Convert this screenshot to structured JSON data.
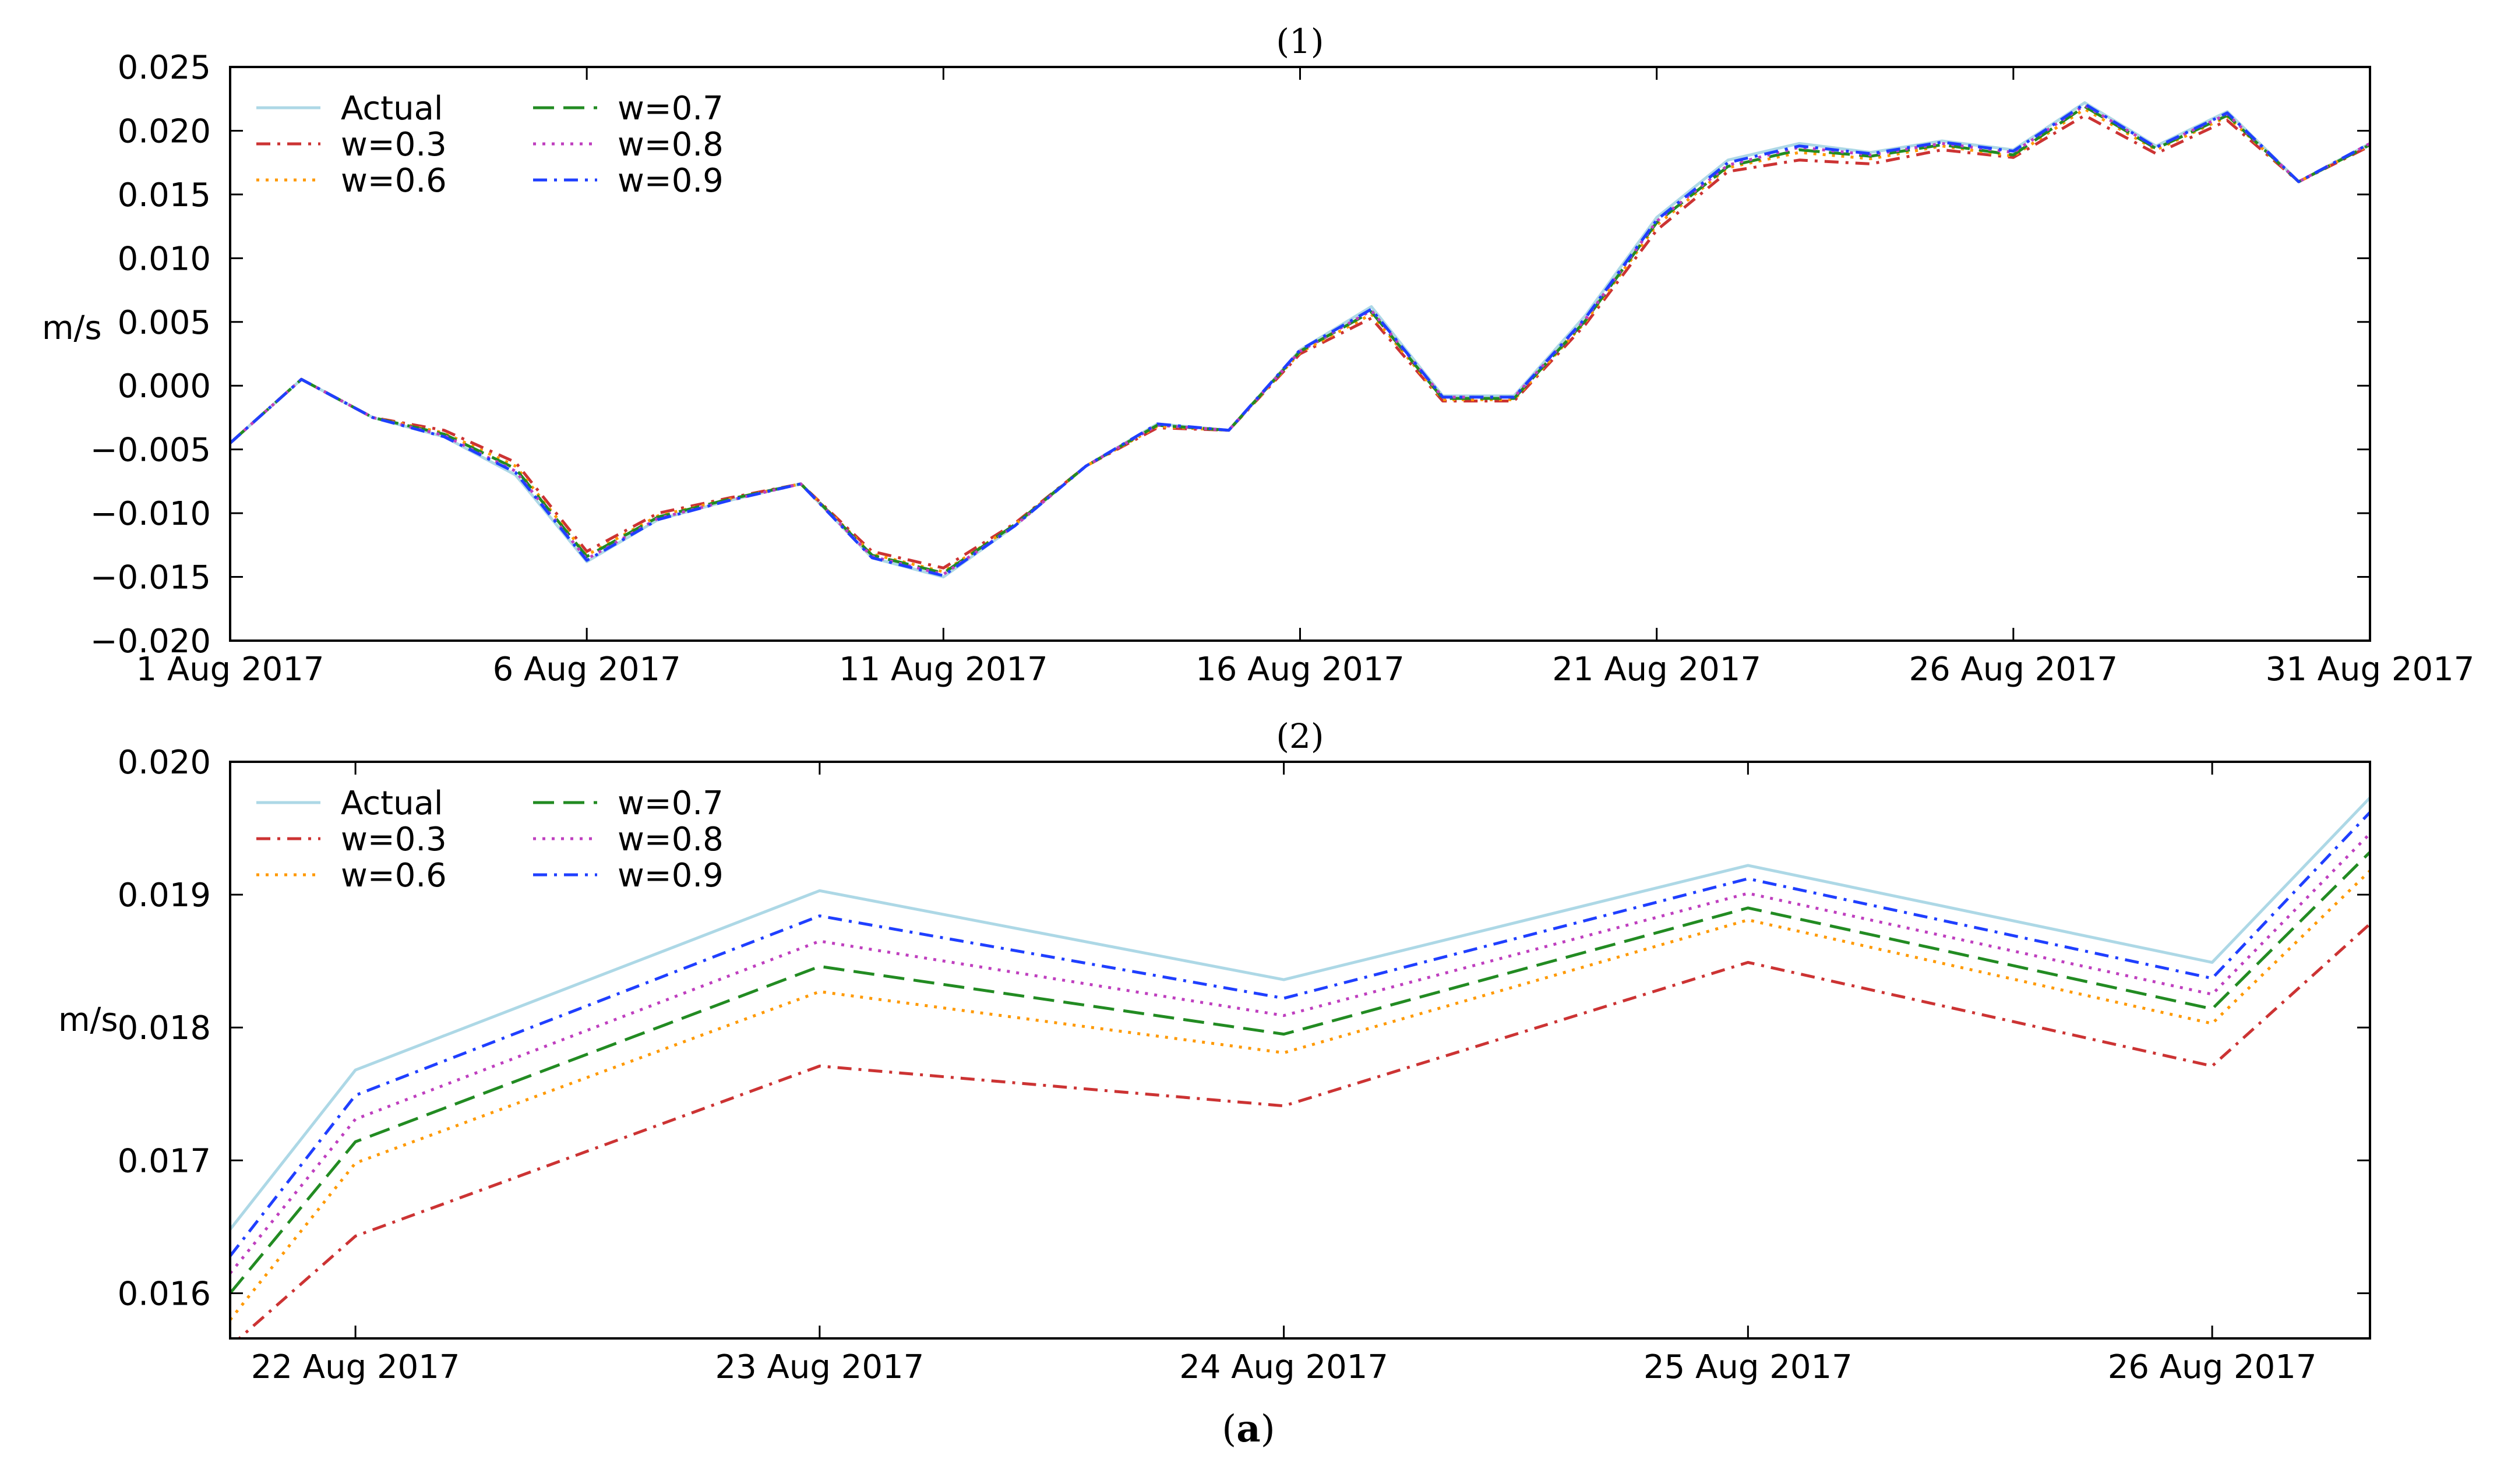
{
  "figure_caption": {
    "open": "(",
    "letter": "a",
    "close": ")"
  },
  "chart_data": [
    {
      "type": "line",
      "title": "(1)",
      "ylabel": "m/s",
      "xlabel": "",
      "legend_location": "top-left",
      "ylim": [
        -0.02,
        0.025
      ],
      "yticks": [
        "0.025",
        "0.020",
        "0.015",
        "0.010",
        "0.005",
        "0.000",
        "−0.005",
        "−0.010",
        "−0.015",
        "−0.020"
      ],
      "ytick_values": [
        0.025,
        0.02,
        0.015,
        0.01,
        0.005,
        0.0,
        -0.005,
        -0.01,
        -0.015,
        -0.02
      ],
      "xlim": [
        1,
        31
      ],
      "x": [
        1,
        2,
        3,
        4,
        5,
        6,
        7,
        8,
        9,
        10,
        11,
        12,
        13,
        14,
        15,
        16,
        17,
        18,
        19,
        20,
        21,
        22,
        23,
        24,
        25,
        26,
        27,
        28,
        29,
        30,
        31
      ],
      "xticks": [
        "1 Aug 2017",
        "6 Aug 2017",
        "11 Aug 2017",
        "16 Aug 2017",
        "21 Aug 2017",
        "26 Aug 2017",
        "31 Aug 2017"
      ],
      "xtick_values": [
        1,
        6,
        11,
        16,
        21,
        26,
        31
      ],
      "series": [
        {
          "name": "Actual",
          "color": "#add8e6",
          "dash": "solid",
          "values": [
            -0.0045,
            0.0005,
            -0.0025,
            -0.004,
            -0.007,
            -0.0138,
            -0.0105,
            -0.009,
            -0.0077,
            -0.0135,
            -0.015,
            -0.011,
            -0.0063,
            -0.003,
            -0.0035,
            0.0028,
            0.0062,
            -0.0008,
            -0.0008,
            0.0055,
            0.0132,
            0.0177,
            0.019,
            0.0183,
            0.0192,
            0.0185,
            0.0222,
            0.0188,
            0.0215,
            0.016,
            0.019
          ]
        },
        {
          "name": "w=0.3",
          "color": "#cc3333",
          "dash": "dashdot",
          "values": [
            -0.0045,
            0.0005,
            -0.0025,
            -0.0035,
            -0.006,
            -0.013,
            -0.01,
            -0.0088,
            -0.0077,
            -0.013,
            -0.0143,
            -0.0108,
            -0.0063,
            -0.0033,
            -0.0035,
            0.0025,
            0.0053,
            -0.0012,
            -0.0012,
            0.0048,
            0.0122,
            0.0168,
            0.0177,
            0.0174,
            0.0185,
            0.0179,
            0.0212,
            0.0182,
            0.0208,
            0.016,
            0.0188
          ]
        },
        {
          "name": "w=0.6",
          "color": "#ff9900",
          "dash": "dotted",
          "values": [
            -0.0045,
            0.0005,
            -0.0025,
            -0.0037,
            -0.0063,
            -0.0133,
            -0.0102,
            -0.0089,
            -0.0077,
            -0.0132,
            -0.0146,
            -0.0109,
            -0.0063,
            -0.0032,
            -0.0035,
            0.0026,
            0.0056,
            -0.0011,
            -0.0011,
            0.005,
            0.0126,
            0.0171,
            0.0183,
            0.0178,
            0.0188,
            0.018,
            0.0217,
            0.0185,
            0.0211,
            0.016,
            0.0189
          ]
        },
        {
          "name": "w=0.7",
          "color": "#228b22",
          "dash": "dashed",
          "values": [
            -0.0045,
            0.0005,
            -0.0025,
            -0.0038,
            -0.0065,
            -0.0134,
            -0.0103,
            -0.0089,
            -0.0077,
            -0.0133,
            -0.0147,
            -0.0109,
            -0.0063,
            -0.0031,
            -0.0035,
            0.0027,
            0.0058,
            -0.001,
            -0.001,
            0.0051,
            0.0128,
            0.0172,
            0.0185,
            0.018,
            0.0189,
            0.0181,
            0.0219,
            0.0186,
            0.0212,
            0.016,
            0.0189
          ]
        },
        {
          "name": "w=0.8",
          "color": "#bf3fbf",
          "dash": "dotted",
          "values": [
            -0.0045,
            0.0005,
            -0.0025,
            -0.0039,
            -0.0067,
            -0.0136,
            -0.0104,
            -0.009,
            -0.0077,
            -0.0134,
            -0.0148,
            -0.011,
            -0.0063,
            -0.0031,
            -0.0035,
            0.0027,
            0.0059,
            -0.0009,
            -0.0009,
            0.0052,
            0.0129,
            0.0173,
            0.0187,
            0.0181,
            0.019,
            0.0183,
            0.022,
            0.0187,
            0.0213,
            0.016,
            0.019
          ]
        },
        {
          "name": "w=0.9",
          "color": "#1f3fff",
          "dash": "dashdot",
          "values": [
            -0.0045,
            0.0005,
            -0.0025,
            -0.004,
            -0.0068,
            -0.0137,
            -0.0105,
            -0.009,
            -0.0077,
            -0.0135,
            -0.0149,
            -0.011,
            -0.0063,
            -0.003,
            -0.0035,
            0.0028,
            0.006,
            -0.0009,
            -0.0009,
            0.0053,
            0.013,
            0.0175,
            0.0188,
            0.0182,
            0.0191,
            0.0184,
            0.0221,
            0.0187,
            0.0214,
            0.016,
            0.019
          ]
        }
      ]
    },
    {
      "type": "line",
      "title": "(2)",
      "ylabel": "m/s",
      "xlabel": "",
      "legend_location": "top-left",
      "ylim": [
        0.01566,
        0.02
      ],
      "yticks": [
        "0.020",
        "0.019",
        "0.018",
        "0.017",
        "0.016"
      ],
      "ytick_values": [
        0.02,
        0.019,
        0.018,
        0.017,
        0.016
      ],
      "xlim": [
        21.73,
        26.34
      ],
      "x": [
        21.73,
        22,
        23,
        24,
        25,
        26,
        26.34
      ],
      "xticks": [
        "22 Aug 2017",
        "23 Aug 2017",
        "24 Aug 2017",
        "25 Aug 2017",
        "26 Aug 2017"
      ],
      "xtick_values": [
        22,
        23,
        24,
        25,
        26
      ],
      "series": [
        {
          "name": "Actual",
          "color": "#add8e6",
          "dash": "solid",
          "values": [
            0.01648,
            0.01768,
            0.01903,
            0.01836,
            0.01922,
            0.01849,
            0.01973
          ]
        },
        {
          "name": "w=0.3",
          "color": "#cc3333",
          "dash": "dashdot",
          "values": [
            0.0156,
            0.01643,
            0.01771,
            0.01741,
            0.01849,
            0.01771,
            0.01878
          ]
        },
        {
          "name": "w=0.6",
          "color": "#ff9900",
          "dash": "dotted",
          "values": [
            0.0158,
            0.01698,
            0.01827,
            0.01781,
            0.01881,
            0.01803,
            0.01918
          ]
        },
        {
          "name": "w=0.7",
          "color": "#228b22",
          "dash": "dashed",
          "values": [
            0.016,
            0.01714,
            0.01846,
            0.01795,
            0.0189,
            0.01814,
            0.01932
          ]
        },
        {
          "name": "w=0.8",
          "color": "#bf3fbf",
          "dash": "dotted",
          "values": [
            0.01615,
            0.01731,
            0.01865,
            0.01809,
            0.01901,
            0.01825,
            0.01946
          ]
        },
        {
          "name": "w=0.9",
          "color": "#1f3fff",
          "dash": "dashdot",
          "values": [
            0.01628,
            0.01749,
            0.01884,
            0.01822,
            0.01912,
            0.01837,
            0.01962
          ]
        }
      ]
    }
  ]
}
